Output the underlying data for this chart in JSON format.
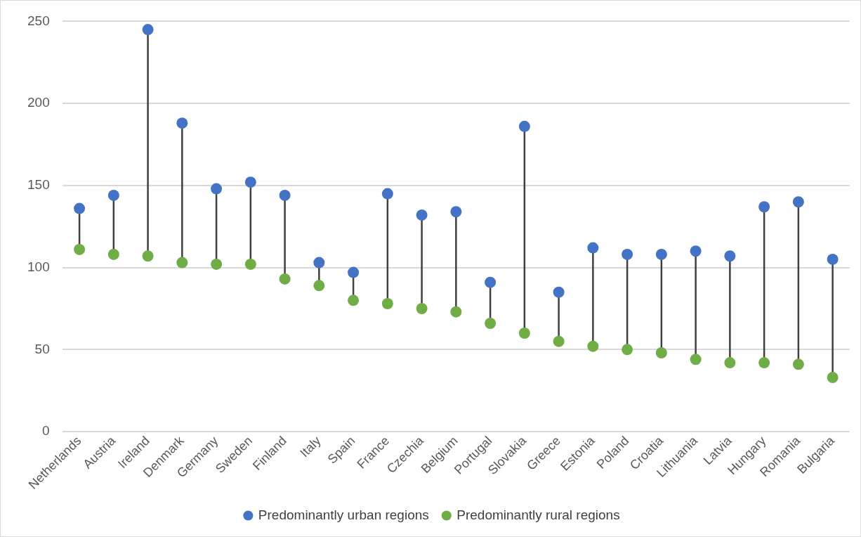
{
  "chart_data": {
    "type": "scatter",
    "categories": [
      "Netherlands",
      "Austria",
      "Ireland",
      "Denmark",
      "Germany",
      "Sweden",
      "Finland",
      "Italy",
      "Spain",
      "France",
      "Czechia",
      "Belgium",
      "Portugal",
      "Slovakia",
      "Greece",
      "Estonia",
      "Poland",
      "Croatia",
      "Lithuania",
      "Latvia",
      "Hungary",
      "Romania",
      "Bulgaria"
    ],
    "series": [
      {
        "name": "Predominantly urban regions",
        "color": "#4472c4",
        "values": [
          136,
          144,
          245,
          188,
          148,
          152,
          144,
          103,
          97,
          145,
          132,
          134,
          91,
          186,
          85,
          112,
          108,
          108,
          110,
          107,
          137,
          140,
          105
        ]
      },
      {
        "name": "Predominantly rural regions",
        "color": "#70ad47",
        "values": [
          111,
          108,
          107,
          103,
          102,
          102,
          93,
          89,
          80,
          78,
          75,
          73,
          66,
          60,
          55,
          52,
          50,
          48,
          44,
          42,
          42,
          41,
          33
        ]
      }
    ],
    "ylim": [
      0,
      250
    ],
    "yticks": [
      0,
      50,
      100,
      150,
      200,
      250
    ],
    "grid": "y",
    "legend": "bottom",
    "marker": "circle"
  }
}
